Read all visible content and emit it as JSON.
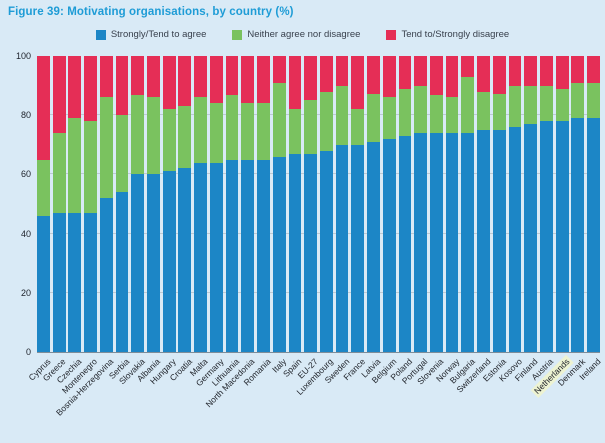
{
  "figure": {
    "title": "Figure 39: Motivating organisations, by country (%)"
  },
  "chart_data": {
    "type": "bar",
    "stacked": true,
    "unit": "%",
    "title": "Figure 39: Motivating organisations, by country (%)",
    "xlabel": "",
    "ylabel": "",
    "ylim": [
      0,
      100
    ],
    "yticks": [
      0,
      20,
      40,
      60,
      80,
      100
    ],
    "gridlines": [
      20,
      40,
      60,
      80
    ],
    "grid": true,
    "legend_position": "top-center",
    "background_color": "#D9EAF6",
    "title_color": "#1E9CD6",
    "highlighted_category": "Netherlands",
    "highlight_color": "#EDF3D2",
    "categories": [
      "Cyprus",
      "Greece",
      "Czechia",
      "Montenegro",
      "Bosnia-Herzegovina",
      "Serbia",
      "Slovakia",
      "Albania",
      "Hungary",
      "Croatia",
      "Malta",
      "Germany",
      "Lithuania",
      "North Macedonia",
      "Romania",
      "Italy",
      "Spain",
      "EU-27",
      "Luxembourg",
      "Sweden",
      "France",
      "Latvia",
      "Belgium",
      "Poland",
      "Portugal",
      "Slovenia",
      "Norway",
      "Bulgaria",
      "Switzerland",
      "Estonia",
      "Kosovo",
      "Finland",
      "Austria",
      "Netherlands",
      "Denmark",
      "Ireland"
    ],
    "series": [
      {
        "name": "Strongly/Tend to agree",
        "color": "#1C86C6",
        "values": [
          46,
          47,
          47,
          47,
          52,
          54,
          60,
          60,
          61,
          62,
          64,
          64,
          65,
          65,
          65,
          66,
          67,
          67,
          68,
          70,
          70,
          71,
          72,
          73,
          74,
          74,
          74,
          74,
          75,
          75,
          76,
          77,
          78,
          78,
          79,
          79
        ]
      },
      {
        "name": "Neither agree nor disagree",
        "color": "#7AC25F",
        "values": [
          19,
          27,
          32,
          31,
          34,
          26,
          27,
          26,
          21,
          21,
          22,
          20,
          22,
          19,
          19,
          25,
          15,
          18,
          20,
          20,
          12,
          16,
          14,
          16,
          16,
          13,
          12,
          19,
          13,
          12,
          14,
          13,
          12,
          11,
          12,
          12
        ]
      },
      {
        "name": "Tend to/Strongly disagree",
        "color": "#E52E56",
        "values": [
          35,
          26,
          21,
          22,
          14,
          20,
          13,
          14,
          18,
          17,
          14,
          16,
          13,
          16,
          16,
          9,
          18,
          15,
          12,
          10,
          18,
          13,
          14,
          11,
          10,
          13,
          14,
          7,
          12,
          13,
          10,
          10,
          10,
          11,
          9,
          9
        ]
      }
    ]
  }
}
